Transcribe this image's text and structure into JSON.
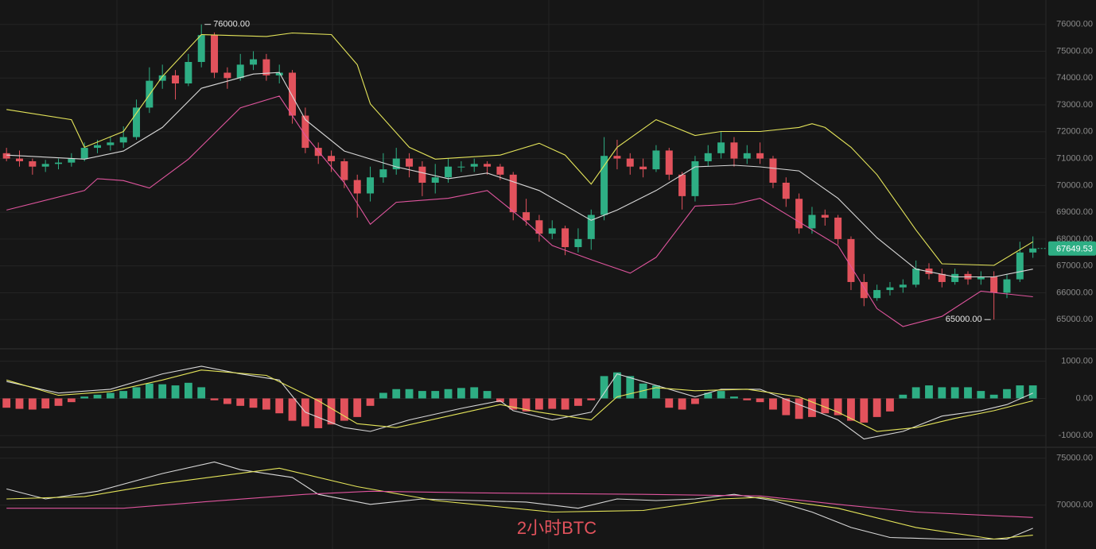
{
  "chart_data": [
    {
      "type": "candlestick",
      "up_color": "#2eae84",
      "down_color": "#e2525c",
      "grid": true,
      "xlim": [
        -0.5,
        80
      ],
      "ylim": [
        64000,
        76850
      ],
      "yticks": [
        {
          "value": 65000,
          "label": "65000.00"
        },
        {
          "value": 66000,
          "label": "66000.00"
        },
        {
          "value": 67000,
          "label": "67000.00"
        },
        {
          "value": 68000,
          "label": "68000.00"
        },
        {
          "value": 69000,
          "label": "69000.00"
        },
        {
          "value": 70000,
          "label": "70000.00"
        },
        {
          "value": 71000,
          "label": "71000.00"
        },
        {
          "value": 72000,
          "label": "72000.00"
        },
        {
          "value": 73000,
          "label": "73000.00"
        },
        {
          "value": 74000,
          "label": "74000.00"
        },
        {
          "value": 75000,
          "label": "75000.00"
        },
        {
          "value": 76000,
          "label": "76000.00"
        }
      ],
      "annotations": [
        {
          "value": 76000,
          "label": "76000.00"
        },
        {
          "value": 65000,
          "label": "65000.00"
        }
      ],
      "candles": [
        [
          71200,
          71400,
          70900,
          71000
        ],
        [
          71000,
          71300,
          70700,
          70900
        ],
        [
          70900,
          71000,
          70400,
          70700
        ],
        [
          70700,
          70950,
          70500,
          70800
        ],
        [
          70800,
          71000,
          70600,
          70850
        ],
        [
          70850,
          71200,
          70700,
          71000
        ],
        [
          71000,
          71600,
          70900,
          71400
        ],
        [
          71400,
          71700,
          71200,
          71500
        ],
        [
          71500,
          71800,
          71300,
          71600
        ],
        [
          71600,
          72200,
          71400,
          71800
        ],
        [
          71800,
          73200,
          71700,
          72900
        ],
        [
          72900,
          74400,
          72700,
          73900
        ],
        [
          73900,
          74500,
          73600,
          74100
        ],
        [
          74100,
          74300,
          73200,
          73800
        ],
        [
          73800,
          74900,
          73700,
          74600
        ],
        [
          74600,
          76000,
          74400,
          75600
        ],
        [
          75600,
          75700,
          74000,
          74200
        ],
        [
          74200,
          74400,
          73600,
          74000
        ],
        [
          74000,
          74900,
          73900,
          74500
        ],
        [
          74500,
          75000,
          74300,
          74700
        ],
        [
          74700,
          74900,
          73900,
          74100
        ],
        [
          74100,
          74500,
          73800,
          74200
        ],
        [
          74200,
          74300,
          72300,
          72600
        ],
        [
          72600,
          72900,
          71200,
          71400
        ],
        [
          71400,
          71600,
          70800,
          71100
        ],
        [
          71100,
          71300,
          70500,
          70900
        ],
        [
          70900,
          71000,
          69900,
          70200
        ],
        [
          70200,
          70400,
          68800,
          69700
        ],
        [
          69700,
          70700,
          69400,
          70300
        ],
        [
          70300,
          71200,
          70100,
          70600
        ],
        [
          70600,
          71400,
          70400,
          71000
        ],
        [
          71000,
          71200,
          70300,
          70700
        ],
        [
          70700,
          70900,
          69600,
          70100
        ],
        [
          70100,
          70800,
          69700,
          70300
        ],
        [
          70300,
          71000,
          70100,
          70700
        ],
        [
          70700,
          70900,
          70500,
          70700
        ],
        [
          70700,
          71000,
          70500,
          70800
        ],
        [
          70800,
          70900,
          70400,
          70700
        ],
        [
          70700,
          70800,
          70200,
          70400
        ],
        [
          70400,
          70500,
          68700,
          69000
        ],
        [
          69000,
          69500,
          68500,
          68700
        ],
        [
          68700,
          68900,
          67900,
          68200
        ],
        [
          68200,
          68700,
          68000,
          68400
        ],
        [
          68400,
          68500,
          67400,
          67700
        ],
        [
          67700,
          68400,
          67500,
          68000
        ],
        [
          68000,
          69100,
          67600,
          68900
        ],
        [
          68900,
          71800,
          68700,
          71100
        ],
        [
          71100,
          71700,
          70600,
          71000
        ],
        [
          71000,
          71200,
          70400,
          70700
        ],
        [
          70700,
          71000,
          70300,
          70600
        ],
        [
          70600,
          71500,
          70500,
          71300
        ],
        [
          71300,
          71400,
          70200,
          70400
        ],
        [
          70400,
          70500,
          69100,
          69600
        ],
        [
          69600,
          71100,
          69400,
          70900
        ],
        [
          70900,
          71500,
          70700,
          71200
        ],
        [
          71200,
          72000,
          71000,
          71600
        ],
        [
          71600,
          71800,
          70700,
          71000
        ],
        [
          71000,
          71500,
          70800,
          71200
        ],
        [
          71200,
          71600,
          70800,
          71000
        ],
        [
          71000,
          71100,
          69900,
          70100
        ],
        [
          70100,
          70300,
          69200,
          69500
        ],
        [
          69500,
          69700,
          68200,
          68400
        ],
        [
          68400,
          69200,
          68200,
          68900
        ],
        [
          68900,
          69100,
          68500,
          68800
        ],
        [
          68800,
          68900,
          67800,
          68000
        ],
        [
          68000,
          68100,
          66100,
          66400
        ],
        [
          66400,
          66700,
          65500,
          65800
        ],
        [
          65800,
          66300,
          65700,
          66100
        ],
        [
          66100,
          66400,
          65900,
          66200
        ],
        [
          66200,
          66500,
          66000,
          66300
        ],
        [
          66300,
          67200,
          66200,
          66900
        ],
        [
          66900,
          67100,
          66500,
          66700
        ],
        [
          66700,
          66900,
          66200,
          66400
        ],
        [
          66400,
          66900,
          66300,
          66700
        ],
        [
          66700,
          66800,
          66300,
          66500
        ],
        [
          66500,
          66800,
          66300,
          66600
        ],
        [
          66600,
          66800,
          65000,
          66000
        ],
        [
          66000,
          66700,
          65800,
          66500
        ],
        [
          66500,
          67900,
          66400,
          67500
        ],
        [
          67500,
          68100,
          67300,
          67649.53
        ]
      ],
      "lines": [
        {
          "color": "#e5e55a",
          "x": [
            0,
            5,
            6,
            9,
            12,
            15,
            20,
            22,
            25,
            27,
            28,
            31,
            33,
            38,
            41,
            43,
            45,
            47,
            50,
            53,
            55,
            58,
            61,
            62,
            63,
            65,
            67,
            70,
            72,
            76,
            79
          ],
          "values": [
            72830,
            72450,
            71420,
            72010,
            74060,
            75620,
            75550,
            75680,
            75620,
            74500,
            73040,
            71420,
            70980,
            71130,
            71570,
            71130,
            70050,
            71420,
            72450,
            71860,
            72010,
            72010,
            72160,
            72300,
            72160,
            71420,
            70400,
            68340,
            67080,
            67020,
            67900
          ]
        },
        {
          "color": "#d8d8d8",
          "x": [
            0,
            6,
            9,
            12,
            15,
            19,
            21,
            23,
            26,
            30,
            34,
            37,
            41,
            45,
            47,
            50,
            53,
            56,
            58,
            61,
            64,
            67,
            70,
            73,
            76,
            79
          ],
          "values": [
            71130,
            70980,
            71280,
            72160,
            73620,
            74150,
            74210,
            72450,
            71280,
            70690,
            70250,
            70460,
            69810,
            68700,
            69080,
            69810,
            70690,
            70750,
            70690,
            70540,
            69520,
            68050,
            66880,
            66590,
            66590,
            66880
          ]
        },
        {
          "color": "#e0559e",
          "x": [
            0,
            6,
            7,
            9,
            11,
            14,
            18,
            21,
            23,
            26,
            28,
            30,
            34,
            37,
            40,
            42,
            45,
            48,
            50,
            53,
            56,
            58,
            61,
            64,
            67,
            69,
            72,
            75,
            79
          ],
          "values": [
            69080,
            69810,
            70250,
            70180,
            69900,
            70980,
            72890,
            73330,
            71860,
            70100,
            68550,
            69370,
            69520,
            69810,
            68640,
            67760,
            67230,
            66730,
            67320,
            69230,
            69300,
            69520,
            68640,
            67760,
            65410,
            64740,
            65120,
            66060,
            65850
          ]
        }
      ]
    },
    {
      "type": "macd",
      "pos_color": "#2eae84",
      "neg_color": "#e2525c",
      "xlim": [
        -0.5,
        80
      ],
      "ylim": [
        -1250,
        1270
      ],
      "yticks": [
        {
          "value": 1000,
          "label": "1000.00"
        },
        {
          "value": 0,
          "label": "0.00"
        },
        {
          "value": -1000,
          "label": "-1000.00"
        }
      ],
      "values": [
        -250,
        -280,
        -300,
        -270,
        -200,
        -100,
        50,
        100,
        150,
        200,
        300,
        400,
        380,
        350,
        420,
        300,
        -50,
        -150,
        -200,
        -250,
        -300,
        -400,
        -600,
        -750,
        -800,
        -700,
        -600,
        -500,
        -200,
        150,
        250,
        250,
        200,
        200,
        250,
        280,
        300,
        200,
        -100,
        -300,
        -350,
        -300,
        -280,
        -300,
        -200,
        -50,
        600,
        700,
        600,
        400,
        350,
        -250,
        -300,
        -150,
        150,
        200,
        50,
        -50,
        -100,
        -300,
        -450,
        -550,
        -500,
        -400,
        -450,
        -600,
        -650,
        -500,
        -350,
        100,
        300,
        350,
        300,
        300,
        300,
        200,
        100,
        250,
        350,
        350
      ],
      "lines": [
        {
          "color": "#d8d8d8",
          "x": [
            0,
            4,
            8,
            12,
            15,
            18,
            21,
            23,
            26,
            28,
            31,
            35,
            38,
            39,
            42,
            45,
            47,
            49,
            50,
            53,
            55,
            58,
            61,
            64,
            66,
            69,
            72,
            75,
            77,
            79
          ],
          "values": [
            454,
            144,
            247,
            660,
            866,
            660,
            495,
            -371,
            -784,
            -887,
            -577,
            -268,
            -62,
            -330,
            -577,
            -371,
            660,
            454,
            351,
            41,
            247,
            247,
            -165,
            -577,
            -1093,
            -887,
            -474,
            -330,
            -165,
            144
          ]
        },
        {
          "color": "#e5e55a",
          "x": [
            0,
            4,
            8,
            12,
            15,
            20,
            24,
            27,
            30,
            34,
            38,
            41,
            45,
            47,
            50,
            53,
            57,
            61,
            64,
            67,
            70,
            73,
            76,
            79
          ],
          "values": [
            495,
            82,
            186,
            495,
            763,
            619,
            -62,
            -680,
            -784,
            -474,
            -165,
            -371,
            -577,
            41,
            289,
            206,
            247,
            41,
            -371,
            -887,
            -784,
            -536,
            -330,
            -62
          ]
        }
      ]
    },
    {
      "type": "line",
      "xlim": [
        -0.5,
        80
      ],
      "ylim": [
        65500,
        75900
      ],
      "yticks": [
        {
          "value": 75000,
          "label": "75000.00"
        },
        {
          "value": 70000,
          "label": "70000.00"
        }
      ],
      "lines": [
        {
          "color": "#d8d8d8",
          "x": [
            0,
            3,
            7,
            12,
            16,
            18,
            22,
            24,
            28,
            32,
            36,
            40,
            44,
            47,
            50,
            53,
            56,
            59,
            62,
            65,
            68,
            72,
            77,
            79
          ],
          "values": [
            71720,
            70660,
            71480,
            73360,
            74590,
            73770,
            72950,
            71150,
            70080,
            70660,
            70490,
            70330,
            69670,
            70660,
            70490,
            70660,
            71150,
            70490,
            69260,
            67620,
            66560,
            66390,
            66390,
            67540
          ]
        },
        {
          "color": "#e5e55a",
          "x": [
            0,
            6,
            12,
            21,
            27,
            33,
            42,
            49,
            55,
            58,
            64,
            70,
            76,
            79
          ],
          "values": [
            70660,
            70900,
            72300,
            73930,
            71970,
            70490,
            69260,
            69430,
            70660,
            70820,
            69670,
            67620,
            66390,
            66800
          ]
        },
        {
          "color": "#e0559e",
          "x": [
            0,
            9,
            15,
            23,
            28,
            36,
            49,
            58,
            64,
            70,
            79
          ],
          "values": [
            69670,
            69670,
            70330,
            71150,
            71480,
            71310,
            71150,
            70980,
            70080,
            69260,
            68690
          ]
        }
      ]
    }
  ],
  "footer": "2小时BTC"
}
